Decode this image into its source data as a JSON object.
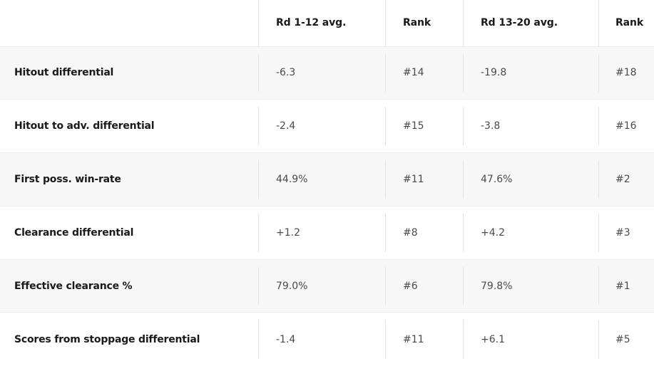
{
  "table": {
    "headers": {
      "metric": "",
      "avg1": "Rd 1-12 avg.",
      "rank1": "Rank",
      "avg2": "Rd 13-20 avg.",
      "rank2": "Rank"
    },
    "rows": [
      {
        "metric": "Hitout differential",
        "avg1": "-6.3",
        "rank1": "#14",
        "avg2": "-19.8",
        "rank2": "#18"
      },
      {
        "metric": "Hitout to adv. differential",
        "avg1": "-2.4",
        "rank1": "#15",
        "avg2": "-3.8",
        "rank2": "#16"
      },
      {
        "metric": "First poss. win-rate",
        "avg1": "44.9%",
        "rank1": "#11",
        "avg2": "47.6%",
        "rank2": "#2"
      },
      {
        "metric": "Clearance differential",
        "avg1": "+1.2",
        "rank1": "#8",
        "avg2": "+4.2",
        "rank2": "#3"
      },
      {
        "metric": "Effective clearance %",
        "avg1": "79.0%",
        "rank1": "#6",
        "avg2": "79.8%",
        "rank2": "#1"
      },
      {
        "metric": "Scores from stoppage differential",
        "avg1": "-1.4",
        "rank1": "#11",
        "avg2": "+6.1",
        "rank2": "#5"
      }
    ]
  }
}
